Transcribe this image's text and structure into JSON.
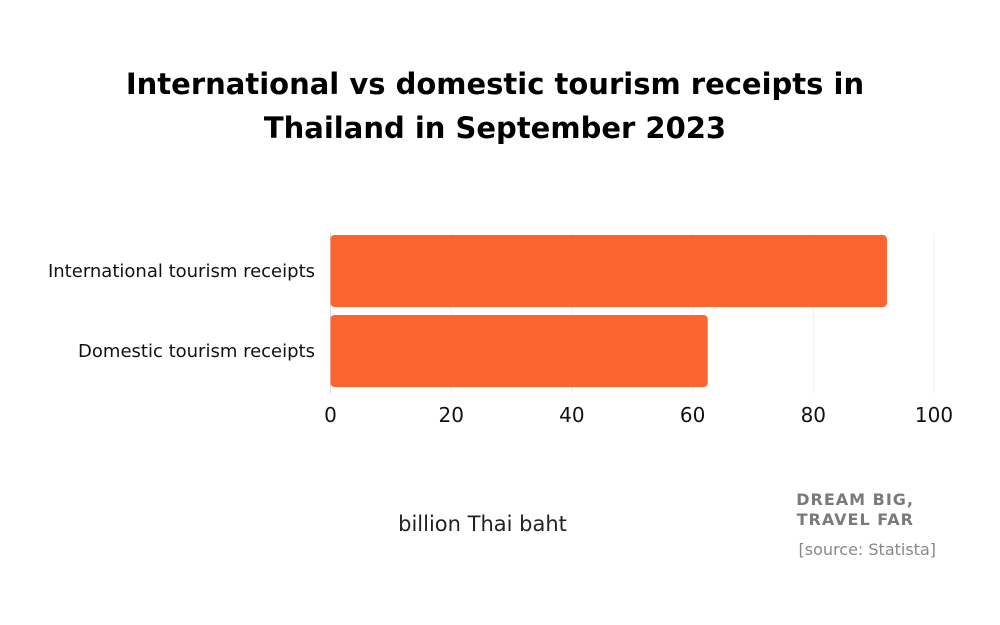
{
  "chart_data": {
    "type": "bar",
    "orientation": "horizontal",
    "title": "International vs domestic tourism receipts in Thailand in September 2023",
    "categories": [
      "International tourism receipts",
      "Domestic tourism receipts"
    ],
    "values": [
      92.2,
      62.5
    ],
    "xlabel": "billion Thai baht",
    "ylabel": "",
    "xlim": [
      0,
      100
    ],
    "xticks": [
      0,
      20,
      40,
      60,
      80,
      100
    ],
    "grid": true,
    "bar_color": "#FC6530"
  },
  "branding": {
    "line1": "DREAM BIG,",
    "line2": "TRAVEL FAR"
  },
  "source": "[source: Statista]"
}
